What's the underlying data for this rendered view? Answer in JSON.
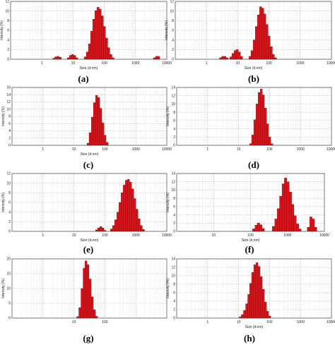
{
  "chart_data": [
    {
      "type": "bar",
      "panel": "(a)",
      "xlabel": "Size (d.nm)",
      "ylabel": "Intensity (%)",
      "xscale": "log",
      "xlim": [
        0.1,
        10000
      ],
      "ylim": [
        0,
        12
      ],
      "xticks": [
        "1",
        "10",
        "100",
        "1000",
        "10000"
      ],
      "yticks": [
        "0",
        "2",
        "4",
        "6",
        "8",
        "10",
        "12"
      ],
      "grid": true,
      "color": "#d9141b",
      "bins": [
        {
          "x": 2.4,
          "y": 0.2
        },
        {
          "x": 2.8,
          "y": 0.5
        },
        {
          "x": 3.3,
          "y": 0.6
        },
        {
          "x": 3.9,
          "y": 0.4
        },
        {
          "x": 7.0,
          "y": 0.3
        },
        {
          "x": 8.2,
          "y": 0.8
        },
        {
          "x": 9.6,
          "y": 1.0
        },
        {
          "x": 11.3,
          "y": 0.8
        },
        {
          "x": 13.2,
          "y": 0.3
        },
        {
          "x": 24.4,
          "y": 0.5
        },
        {
          "x": 28.5,
          "y": 1.5
        },
        {
          "x": 33.4,
          "y": 3.2
        },
        {
          "x": 39.2,
          "y": 5.8
        },
        {
          "x": 45.9,
          "y": 8.3
        },
        {
          "x": 53.8,
          "y": 10.1
        },
        {
          "x": 63.0,
          "y": 10.8
        },
        {
          "x": 73.8,
          "y": 10.4
        },
        {
          "x": 86.4,
          "y": 9.0
        },
        {
          "x": 101,
          "y": 6.8
        },
        {
          "x": 119,
          "y": 4.4
        },
        {
          "x": 139,
          "y": 2.4
        },
        {
          "x": 163,
          "y": 1.0
        },
        {
          "x": 191,
          "y": 0.3
        },
        {
          "x": 4000,
          "y": 0.3
        },
        {
          "x": 4700,
          "y": 0.6
        },
        {
          "x": 5500,
          "y": 0.6
        }
      ]
    },
    {
      "type": "bar",
      "panel": "(b)",
      "xlabel": "Size (d.nm)",
      "ylabel": "Intensity (%)",
      "xscale": "log",
      "xlim": [
        0.1,
        10000
      ],
      "ylim": [
        0,
        12
      ],
      "xticks": [
        "1",
        "10",
        "100",
        "1000",
        "10000"
      ],
      "yticks": [
        "0",
        "2",
        "4",
        "6",
        "8",
        "10",
        "12"
      ],
      "grid": true,
      "color": "#d9141b",
      "bins": [
        {
          "x": 2.8,
          "y": 0.3
        },
        {
          "x": 3.3,
          "y": 0.6
        },
        {
          "x": 3.9,
          "y": 0.6
        },
        {
          "x": 4.6,
          "y": 0.3
        },
        {
          "x": 6.0,
          "y": 0.5
        },
        {
          "x": 7.0,
          "y": 1.2
        },
        {
          "x": 8.2,
          "y": 1.8
        },
        {
          "x": 9.6,
          "y": 2.0
        },
        {
          "x": 11.3,
          "y": 1.5
        },
        {
          "x": 13.2,
          "y": 0.6
        },
        {
          "x": 24.4,
          "y": 0.6
        },
        {
          "x": 28.5,
          "y": 1.8
        },
        {
          "x": 33.4,
          "y": 4.0
        },
        {
          "x": 39.2,
          "y": 6.8
        },
        {
          "x": 45.9,
          "y": 9.2
        },
        {
          "x": 53.8,
          "y": 10.9
        },
        {
          "x": 63.0,
          "y": 10.6
        },
        {
          "x": 73.8,
          "y": 9.4
        },
        {
          "x": 86.4,
          "y": 7.2
        },
        {
          "x": 101,
          "y": 4.8
        },
        {
          "x": 119,
          "y": 2.6
        },
        {
          "x": 139,
          "y": 1.0
        },
        {
          "x": 163,
          "y": 0.3
        }
      ]
    },
    {
      "type": "bar",
      "panel": "(c)",
      "xlabel": "Size (d.nm)",
      "ylabel": "Intensity (%)",
      "xscale": "log",
      "xlim": [
        0.1,
        10000
      ],
      "ylim": [
        0,
        16
      ],
      "xticks": [
        "1",
        "10",
        "100",
        "1000",
        "10000"
      ],
      "yticks": [
        "0",
        "2",
        "4",
        "6",
        "8",
        "10",
        "12",
        "14",
        "16"
      ],
      "grid": true,
      "color": "#d9141b",
      "bins": [
        {
          "x": 28.5,
          "y": 0.6
        },
        {
          "x": 33.4,
          "y": 3.5
        },
        {
          "x": 39.2,
          "y": 7.8
        },
        {
          "x": 45.9,
          "y": 11.8
        },
        {
          "x": 53.8,
          "y": 13.8
        },
        {
          "x": 63.0,
          "y": 13.2
        },
        {
          "x": 73.8,
          "y": 10.2
        },
        {
          "x": 86.4,
          "y": 6.2
        },
        {
          "x": 101,
          "y": 2.8
        },
        {
          "x": 119,
          "y": 0.8
        }
      ]
    },
    {
      "type": "bar",
      "panel": "(d)",
      "xlabel": "",
      "ylabel": "Intensity (%)",
      "xscale": "log",
      "xlim": [
        0.1,
        10000
      ],
      "ylim": [
        0,
        14
      ],
      "xticks": [
        "1",
        "10",
        "100",
        "1000",
        "10000"
      ],
      "yticks": [
        "0",
        "2",
        "4",
        "6",
        "8",
        "10",
        "12",
        "14"
      ],
      "grid": true,
      "color": "#d9141b",
      "bins": [
        {
          "x": 24.4,
          "y": 0.4
        },
        {
          "x": 28.5,
          "y": 2.5
        },
        {
          "x": 33.4,
          "y": 6.2
        },
        {
          "x": 39.2,
          "y": 10.0
        },
        {
          "x": 45.9,
          "y": 12.8
        },
        {
          "x": 53.8,
          "y": 13.6
        },
        {
          "x": 63.0,
          "y": 12.2
        },
        {
          "x": 73.8,
          "y": 9.0
        },
        {
          "x": 86.4,
          "y": 5.2
        },
        {
          "x": 101,
          "y": 2.0
        },
        {
          "x": 119,
          "y": 0.4
        }
      ]
    },
    {
      "type": "bar",
      "panel": "(e)",
      "xlabel": "Size (d.nm)",
      "ylabel": "Intensity (%)",
      "xscale": "log",
      "xlim": [
        0.1,
        10000
      ],
      "ylim": [
        0,
        12
      ],
      "xticks": [
        "1",
        "10",
        "100",
        "1000",
        "10000"
      ],
      "yticks": [
        "0",
        "2",
        "4",
        "6",
        "8",
        "10",
        "12"
      ],
      "grid": true,
      "color": "#d9141b",
      "bins": [
        {
          "x": 53.8,
          "y": 0.3
        },
        {
          "x": 63.0,
          "y": 0.7
        },
        {
          "x": 73.8,
          "y": 1.0
        },
        {
          "x": 86.4,
          "y": 0.7
        },
        {
          "x": 101,
          "y": 0.2
        },
        {
          "x": 163,
          "y": 0.5
        },
        {
          "x": 191,
          "y": 1.2
        },
        {
          "x": 224,
          "y": 2.4
        },
        {
          "x": 263,
          "y": 4.0
        },
        {
          "x": 308,
          "y": 6.0
        },
        {
          "x": 360,
          "y": 8.0
        },
        {
          "x": 422,
          "y": 9.6
        },
        {
          "x": 494,
          "y": 10.6
        },
        {
          "x": 579,
          "y": 10.8
        },
        {
          "x": 678,
          "y": 10.2
        },
        {
          "x": 794,
          "y": 8.8
        },
        {
          "x": 930,
          "y": 6.8
        },
        {
          "x": 1090,
          "y": 4.6
        },
        {
          "x": 1280,
          "y": 2.6
        },
        {
          "x": 1500,
          "y": 1.2
        },
        {
          "x": 1760,
          "y": 0.4
        }
      ]
    },
    {
      "type": "bar",
      "panel": "(f)",
      "xlabel": "Size (d.nm)",
      "ylabel": "Intensity (%)",
      "xscale": "log",
      "xlim": [
        1,
        10000
      ],
      "ylim": [
        0,
        14
      ],
      "xticks": [
        "10",
        "100",
        "1000",
        "10000"
      ],
      "yticks": [
        "0",
        "2",
        "4",
        "6",
        "8",
        "10",
        "12",
        "14"
      ],
      "grid": true,
      "color": "#d9141b",
      "bins": [
        {
          "x": 122,
          "y": 0.6
        },
        {
          "x": 142,
          "y": 1.5
        },
        {
          "x": 164,
          "y": 2.0
        },
        {
          "x": 190,
          "y": 1.6
        },
        {
          "x": 220,
          "y": 0.7
        },
        {
          "x": 420,
          "y": 1.2
        },
        {
          "x": 490,
          "y": 3.0
        },
        {
          "x": 570,
          "y": 5.5
        },
        {
          "x": 660,
          "y": 8.5
        },
        {
          "x": 770,
          "y": 11.5
        },
        {
          "x": 890,
          "y": 12.9
        },
        {
          "x": 1030,
          "y": 12.0
        },
        {
          "x": 1200,
          "y": 9.5
        },
        {
          "x": 1390,
          "y": 6.5
        },
        {
          "x": 1610,
          "y": 3.8
        },
        {
          "x": 1870,
          "y": 1.8
        },
        {
          "x": 2170,
          "y": 0.6
        },
        {
          "x": 3700,
          "y": 1.0
        },
        {
          "x": 4300,
          "y": 3.5
        },
        {
          "x": 5000,
          "y": 3.0
        },
        {
          "x": 5800,
          "y": 1.0
        }
      ]
    },
    {
      "type": "bar",
      "panel": "(g)",
      "xlabel": "",
      "ylabel": "Intensity (%)",
      "xscale": "log",
      "xlim": [
        0.1,
        10000
      ],
      "ylim": [
        0,
        20
      ],
      "xticks": [
        "10",
        "100"
      ],
      "yticks": [
        "0",
        "5",
        "10",
        "15",
        "20"
      ],
      "grid": true,
      "color": "#d9141b",
      "bins": [
        {
          "x": 13.2,
          "y": 0.5
        },
        {
          "x": 15.5,
          "y": 3.5
        },
        {
          "x": 18.2,
          "y": 10.0
        },
        {
          "x": 21.3,
          "y": 16.8
        },
        {
          "x": 24.4,
          "y": 19.3
        },
        {
          "x": 28.5,
          "y": 18.0
        },
        {
          "x": 33.4,
          "y": 13.2
        },
        {
          "x": 39.2,
          "y": 7.2
        },
        {
          "x": 45.9,
          "y": 2.8
        },
        {
          "x": 53.8,
          "y": 0.6
        }
      ]
    },
    {
      "type": "bar",
      "panel": "(h)",
      "xlabel": "Size (d.nm)",
      "ylabel": "Intensity (%)",
      "xscale": "log",
      "xlim": [
        0.1,
        10000
      ],
      "ylim": [
        0,
        14
      ],
      "xticks": [
        "1",
        "10",
        "100",
        "1000",
        "10000"
      ],
      "yticks": [
        "0",
        "2",
        "4",
        "6",
        "8",
        "10",
        "12",
        "14"
      ],
      "grid": true,
      "color": "#d9141b",
      "bins": [
        {
          "x": 11.3,
          "y": 0.3
        },
        {
          "x": 13.2,
          "y": 0.8
        },
        {
          "x": 15.5,
          "y": 1.8
        },
        {
          "x": 18.2,
          "y": 3.4
        },
        {
          "x": 21.3,
          "y": 5.6
        },
        {
          "x": 24.4,
          "y": 8.2
        },
        {
          "x": 28.5,
          "y": 10.8
        },
        {
          "x": 33.4,
          "y": 12.6
        },
        {
          "x": 39.2,
          "y": 13.1
        },
        {
          "x": 45.9,
          "y": 12.2
        },
        {
          "x": 53.8,
          "y": 9.8
        },
        {
          "x": 63.0,
          "y": 6.8
        },
        {
          "x": 73.8,
          "y": 3.8
        },
        {
          "x": 86.4,
          "y": 1.6
        },
        {
          "x": 101,
          "y": 0.5
        }
      ]
    }
  ]
}
